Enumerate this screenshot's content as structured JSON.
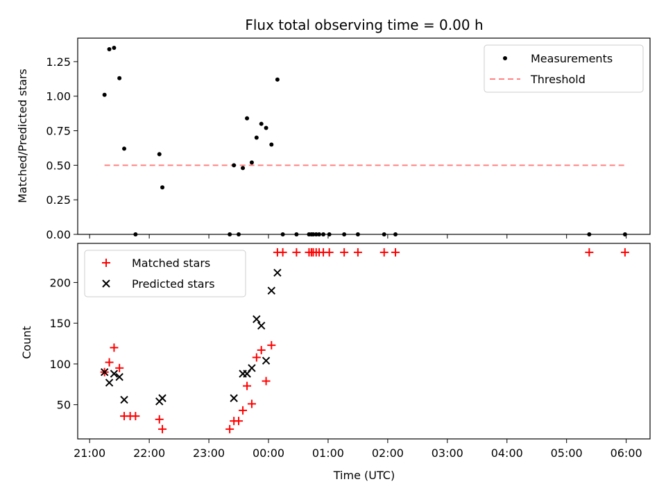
{
  "title": "Flux total observing time = 0.00 h",
  "xlabel": "Time (UTC)",
  "x_ticks": [
    "21:00",
    "22:00",
    "23:00",
    "00:00",
    "01:00",
    "02:00",
    "03:00",
    "04:00",
    "05:00",
    "06:00"
  ],
  "colors": {
    "measurement": "#000000",
    "threshold": "#ff8080",
    "matched": "#ff0000",
    "predicted": "#000000"
  },
  "chart_data": [
    {
      "type": "scatter",
      "ylabel": "Matched/Predicted stars",
      "ylim": [
        0,
        1.42
      ],
      "xlim": [
        -0.2,
        9.4
      ],
      "y_ticks": [
        "0.00",
        "0.25",
        "0.50",
        "0.75",
        "1.00",
        "1.25"
      ],
      "legend": {
        "placement": "top-right",
        "entries": [
          "Measurements",
          "Threshold"
        ]
      },
      "threshold": {
        "name": "Threshold",
        "value": 0.5,
        "x_range": [
          0.25,
          8.98
        ]
      },
      "series": [
        {
          "name": "Measurements",
          "x": [
            0.25,
            0.33,
            0.41,
            0.5,
            0.58,
            0.77,
            1.17,
            1.22,
            2.35,
            2.42,
            2.5,
            2.57,
            2.64,
            2.72,
            2.8,
            2.88,
            2.96,
            3.05,
            3.15,
            3.24,
            3.47,
            3.68,
            3.72,
            3.75,
            3.8,
            3.85,
            3.92,
            4.02,
            4.27,
            4.5,
            4.94,
            5.13,
            8.38,
            8.98
          ],
          "y": [
            1.01,
            1.34,
            1.35,
            1.13,
            0.62,
            0.0,
            0.58,
            0.34,
            0.0,
            0.5,
            0.0,
            0.48,
            0.84,
            0.52,
            0.7,
            0.8,
            0.77,
            0.65,
            1.12,
            0.0,
            0.0,
            0.0,
            0.0,
            0.0,
            0.0,
            0.0,
            0.0,
            0.0,
            0.0,
            0.0,
            0.0,
            0.0,
            0.0,
            0.0
          ]
        }
      ]
    },
    {
      "type": "scatter",
      "ylabel": "Count",
      "ylim": [
        8,
        248
      ],
      "xlim": [
        -0.2,
        9.4
      ],
      "y_ticks": [
        "50",
        "100",
        "150",
        "200"
      ],
      "legend": {
        "placement": "top-left",
        "entries": [
          "Matched stars",
          "Predicted stars"
        ]
      },
      "series": [
        {
          "name": "Matched stars",
          "x": [
            0.25,
            0.33,
            0.41,
            0.5,
            0.58,
            0.77,
            1.17,
            1.22,
            2.35,
            2.42,
            2.5,
            2.57,
            2.64,
            2.72,
            2.8,
            2.88,
            2.96,
            3.05,
            3.15,
            3.24,
            3.47,
            3.68,
            3.72,
            3.75,
            3.8,
            3.85,
            3.92,
            4.02,
            4.27,
            4.5,
            4.94,
            5.13,
            8.38,
            8.98,
            0.68
          ],
          "y": [
            90,
            102,
            120,
            95,
            36,
            36,
            32,
            20,
            20,
            30,
            30,
            43,
            73,
            51,
            108,
            117,
            79,
            123,
            237,
            237,
            237,
            237,
            237,
            237,
            237,
            237,
            237,
            237,
            237,
            237,
            237,
            237,
            237,
            237,
            36
          ]
        },
        {
          "name": "Predicted stars",
          "x": [
            0.25,
            0.33,
            0.41,
            0.5,
            0.58,
            1.17,
            1.22,
            2.42,
            2.57,
            2.64,
            2.72,
            2.8,
            2.88,
            2.96,
            3.05,
            3.15
          ],
          "y": [
            90,
            77,
            88,
            84,
            56,
            54,
            58,
            58,
            88,
            88,
            95,
            155,
            147,
            104,
            190,
            212
          ]
        }
      ]
    }
  ]
}
